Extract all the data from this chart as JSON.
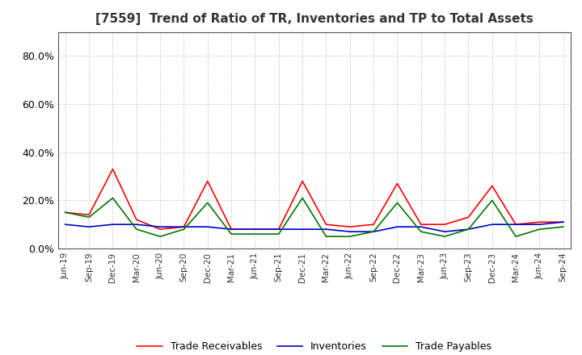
{
  "title": "[7559]  Trend of Ratio of TR, Inventories and TP to Total Assets",
  "x_labels": [
    "Jun-19",
    "Sep-19",
    "Dec-19",
    "Mar-20",
    "Jun-20",
    "Sep-20",
    "Dec-20",
    "Mar-21",
    "Jun-21",
    "Sep-21",
    "Dec-21",
    "Mar-22",
    "Jun-22",
    "Sep-22",
    "Dec-22",
    "Mar-23",
    "Jun-23",
    "Sep-23",
    "Dec-23",
    "Mar-24",
    "Jun-24",
    "Sep-24"
  ],
  "trade_receivables": [
    0.15,
    0.14,
    0.33,
    0.12,
    0.08,
    0.09,
    0.28,
    0.08,
    0.08,
    0.08,
    0.28,
    0.1,
    0.09,
    0.1,
    0.27,
    0.1,
    0.1,
    0.13,
    0.26,
    0.1,
    0.11,
    0.11
  ],
  "inventories": [
    0.1,
    0.09,
    0.1,
    0.1,
    0.09,
    0.09,
    0.09,
    0.08,
    0.08,
    0.08,
    0.08,
    0.08,
    0.07,
    0.07,
    0.09,
    0.09,
    0.07,
    0.08,
    0.1,
    0.1,
    0.1,
    0.11
  ],
  "trade_payables": [
    0.15,
    0.13,
    0.21,
    0.08,
    0.05,
    0.08,
    0.19,
    0.06,
    0.06,
    0.06,
    0.21,
    0.05,
    0.05,
    0.07,
    0.19,
    0.07,
    0.05,
    0.08,
    0.2,
    0.05,
    0.08,
    0.09
  ],
  "ylim": [
    0.0,
    0.9
  ],
  "yticks": [
    0.0,
    0.2,
    0.4,
    0.6,
    0.8
  ],
  "colors": {
    "trade_receivables": "#ff0000",
    "inventories": "#0000cc",
    "trade_payables": "#007700"
  },
  "legend": [
    "Trade Receivables",
    "Inventories",
    "Trade Payables"
  ],
  "background_color": "#ffffff",
  "grid_color": "#aaaaaa",
  "border_color": "#555555"
}
